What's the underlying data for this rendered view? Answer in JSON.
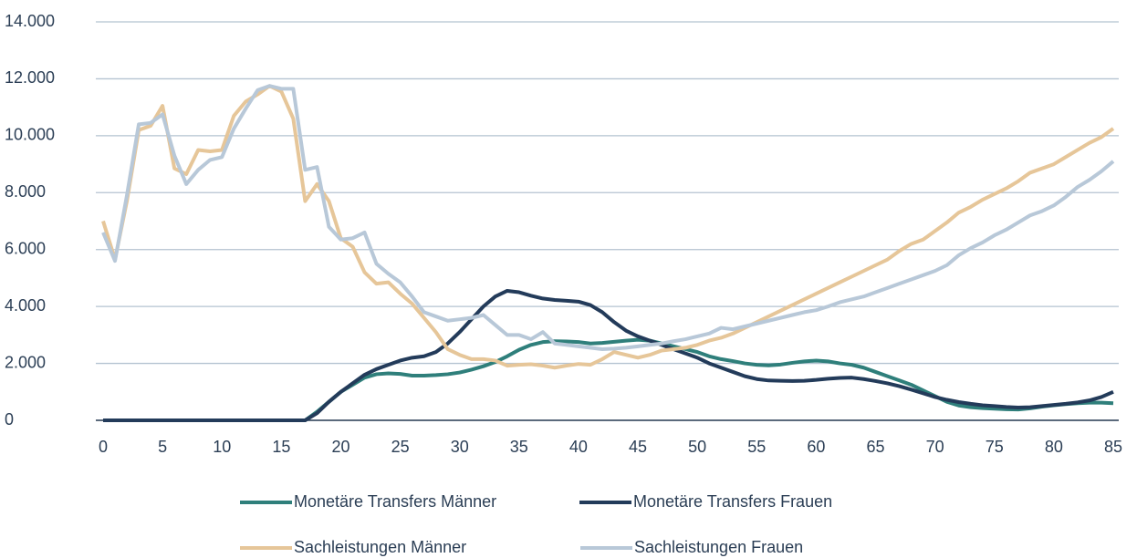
{
  "chart_data": {
    "type": "line",
    "x": [
      0,
      1,
      2,
      3,
      4,
      5,
      6,
      7,
      8,
      9,
      10,
      11,
      12,
      13,
      14,
      15,
      16,
      17,
      18,
      19,
      20,
      21,
      22,
      23,
      24,
      25,
      26,
      27,
      28,
      29,
      30,
      31,
      32,
      33,
      34,
      35,
      36,
      37,
      38,
      39,
      40,
      41,
      42,
      43,
      44,
      45,
      46,
      47,
      48,
      49,
      50,
      51,
      52,
      53,
      54,
      55,
      56,
      57,
      58,
      59,
      60,
      61,
      62,
      63,
      64,
      65,
      66,
      67,
      68,
      69,
      70,
      71,
      72,
      73,
      74,
      75,
      76,
      77,
      78,
      79,
      80,
      81,
      82,
      83,
      84,
      85
    ],
    "xlim": [
      0,
      85
    ],
    "xticks": [
      0,
      5,
      10,
      15,
      20,
      25,
      30,
      35,
      40,
      45,
      50,
      55,
      60,
      65,
      70,
      75,
      80,
      85
    ],
    "ylim": [
      0,
      14000
    ],
    "yticks": [
      {
        "value": 0,
        "label": "0"
      },
      {
        "value": 2000,
        "label": "2.000"
      },
      {
        "value": 4000,
        "label": "4.000"
      },
      {
        "value": 6000,
        "label": "6.000"
      },
      {
        "value": 8000,
        "label": "8.000"
      },
      {
        "value": 10000,
        "label": "10.000"
      },
      {
        "value": 12000,
        "label": "12.000"
      },
      {
        "value": 14000,
        "label": "14.000"
      }
    ],
    "grid": true,
    "legend": "bottom",
    "series": [
      {
        "name": "Monetäre Transfers Männer",
        "color": "#2f7f7b",
        "values": [
          0,
          0,
          0,
          0,
          0,
          0,
          0,
          0,
          0,
          0,
          0,
          0,
          0,
          0,
          0,
          0,
          0,
          0,
          300,
          650,
          1000,
          1250,
          1500,
          1620,
          1650,
          1630,
          1570,
          1570,
          1590,
          1620,
          1680,
          1780,
          1900,
          2050,
          2250,
          2480,
          2650,
          2750,
          2780,
          2770,
          2750,
          2700,
          2720,
          2760,
          2800,
          2830,
          2800,
          2700,
          2600,
          2500,
          2400,
          2250,
          2150,
          2080,
          2000,
          1950,
          1930,
          1960,
          2020,
          2070,
          2100,
          2070,
          2000,
          1950,
          1850,
          1700,
          1550,
          1400,
          1250,
          1050,
          850,
          650,
          520,
          460,
          430,
          410,
          390,
          380,
          420,
          480,
          530,
          570,
          600,
          620,
          620,
          600
        ]
      },
      {
        "name": "Monetäre Transfers Frauen",
        "color": "#233b5a",
        "values": [
          0,
          0,
          0,
          0,
          0,
          0,
          0,
          0,
          0,
          0,
          0,
          0,
          0,
          0,
          0,
          0,
          0,
          0,
          250,
          650,
          1000,
          1300,
          1600,
          1800,
          1950,
          2100,
          2200,
          2250,
          2400,
          2700,
          3100,
          3550,
          4000,
          4350,
          4550,
          4500,
          4380,
          4280,
          4230,
          4200,
          4170,
          4050,
          3800,
          3450,
          3150,
          2950,
          2800,
          2650,
          2500,
          2350,
          2200,
          2000,
          1850,
          1700,
          1550,
          1450,
          1400,
          1390,
          1380,
          1390,
          1420,
          1460,
          1490,
          1500,
          1450,
          1380,
          1300,
          1200,
          1080,
          950,
          820,
          720,
          640,
          580,
          530,
          500,
          470,
          450,
          460,
          500,
          540,
          580,
          630,
          700,
          820,
          1000
        ]
      },
      {
        "name": "Sachleistungen Männer",
        "color": "#e6c699",
        "values": [
          7000,
          5650,
          7700,
          10200,
          10350,
          11050,
          8850,
          8650,
          9500,
          9450,
          9500,
          10700,
          11200,
          11450,
          11750,
          11550,
          10600,
          7700,
          8300,
          7700,
          6400,
          6100,
          5200,
          4800,
          4850,
          4450,
          4100,
          3600,
          3100,
          2500,
          2300,
          2150,
          2150,
          2100,
          1920,
          1950,
          1970,
          1920,
          1850,
          1920,
          1980,
          1950,
          2150,
          2400,
          2300,
          2200,
          2300,
          2450,
          2500,
          2550,
          2650,
          2800,
          2900,
          3050,
          3250,
          3450,
          3650,
          3850,
          4050,
          4250,
          4450,
          4650,
          4850,
          5050,
          5250,
          5450,
          5650,
          5950,
          6200,
          6350,
          6650,
          6950,
          7300,
          7500,
          7750,
          7950,
          8150,
          8400,
          8700,
          8850,
          9000,
          9250,
          9500,
          9750,
          9950,
          10250
        ]
      },
      {
        "name": "Sachleistungen Frauen",
        "color": "#b8c8d8",
        "values": [
          6600,
          5600,
          7900,
          10400,
          10450,
          10750,
          9300,
          8300,
          8800,
          9150,
          9250,
          10250,
          10950,
          11600,
          11750,
          11650,
          11650,
          8800,
          8900,
          6800,
          6350,
          6400,
          6600,
          5500,
          5150,
          4850,
          4350,
          3800,
          3650,
          3500,
          3550,
          3600,
          3700,
          3350,
          3000,
          3000,
          2850,
          3100,
          2700,
          2650,
          2600,
          2550,
          2500,
          2520,
          2550,
          2600,
          2650,
          2700,
          2780,
          2850,
          2950,
          3050,
          3250,
          3200,
          3300,
          3400,
          3500,
          3600,
          3700,
          3800,
          3870,
          4000,
          4150,
          4250,
          4350,
          4500,
          4650,
          4800,
          4950,
          5100,
          5250,
          5450,
          5800,
          6050,
          6250,
          6500,
          6700,
          6950,
          7200,
          7350,
          7550,
          7850,
          8200,
          8450,
          8750,
          9100
        ]
      }
    ]
  }
}
